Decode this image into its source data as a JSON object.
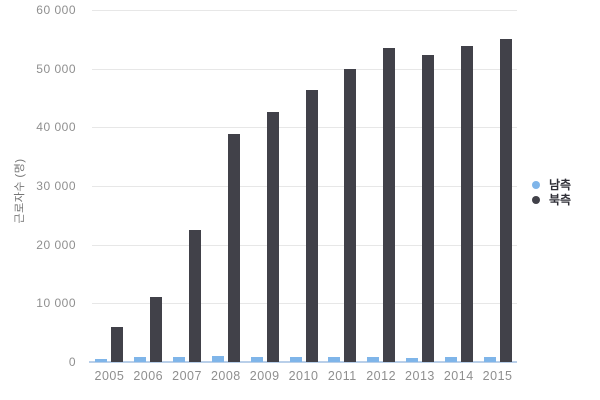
{
  "chart_data": {
    "type": "bar",
    "title": "",
    "categories": [
      "2005",
      "2006",
      "2007",
      "2008",
      "2009",
      "2010",
      "2011",
      "2012",
      "2013",
      "2014",
      "2015"
    ],
    "series": [
      {
        "name": "남측",
        "color": "#7FB5E9",
        "values": [
          507,
          791,
          785,
          1055,
          935,
          804,
          776,
          786,
          757,
          815,
          809
        ]
      },
      {
        "name": "북측",
        "color": "#414149",
        "values": [
          6013,
          11160,
          22538,
          38931,
          42561,
          46284,
          49866,
          53448,
          52329,
          53947,
          54988
        ]
      }
    ],
    "xlabel": "",
    "ylabel": "근로자수 (명)",
    "ylim": [
      0,
      60000
    ],
    "yticks": [
      0,
      10000,
      20000,
      30000,
      40000,
      50000,
      60000
    ],
    "ytick_labels": [
      "0",
      "10 000",
      "20 000",
      "30 000",
      "40 000",
      "50 000",
      "60 000"
    ],
    "grid": true,
    "legend_position": "right-center"
  },
  "colors": {
    "background": "#ffffff",
    "gridline": "#e7e7e7",
    "baseline": "#b9cfe9",
    "tick_label": "#8f8f8f",
    "axis_title": "#757575",
    "legend_text": "#2e2e36"
  }
}
